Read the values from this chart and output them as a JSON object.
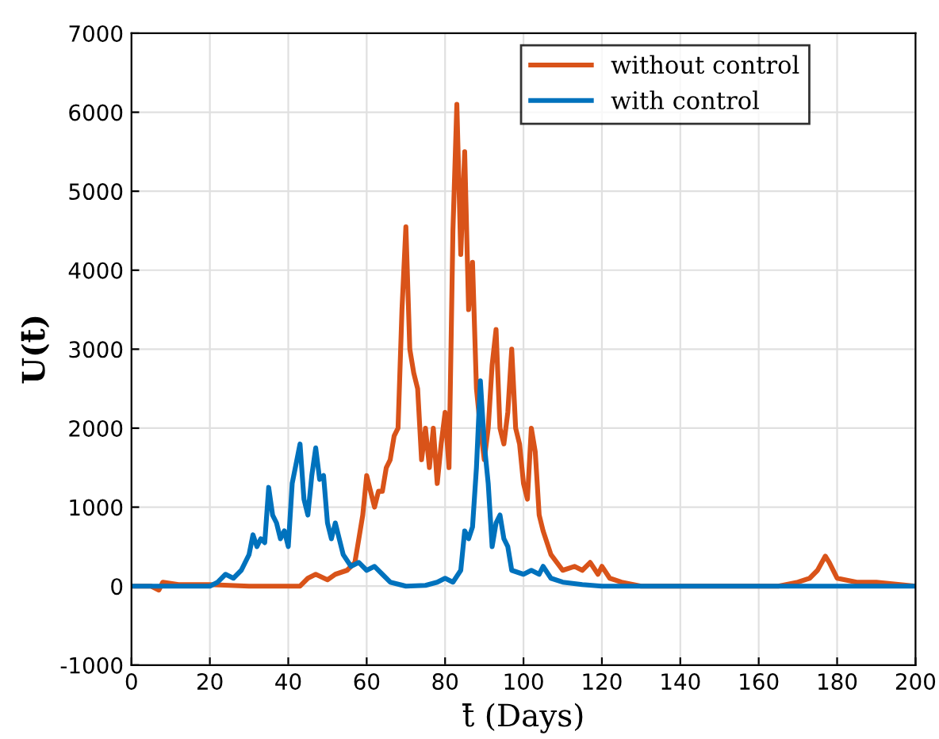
{
  "chart_data": {
    "type": "line",
    "xlabel": "t̄ (Days)",
    "ylabel": "U(t̄)",
    "xlim": [
      0,
      200
    ],
    "xticks": [
      0,
      20,
      40,
      60,
      80,
      100,
      120,
      140,
      160,
      180,
      200
    ],
    "ylim": [
      -1000,
      7000
    ],
    "yticks": [
      -1000,
      0,
      1000,
      2000,
      3000,
      4000,
      5000,
      6000,
      7000
    ],
    "grid": true,
    "legend": "top right",
    "line_style": "solid",
    "marker": "none",
    "series": [
      {
        "name": "without control",
        "color": "#d95319",
        "x": [
          0,
          5,
          7,
          8,
          12,
          20,
          25,
          30,
          43,
          45,
          47,
          50,
          52,
          55,
          57,
          58,
          59,
          60,
          61,
          62,
          63,
          64,
          65,
          66,
          67,
          68,
          69,
          70,
          71,
          72,
          73,
          74,
          75,
          76,
          77,
          78,
          79,
          80,
          81,
          82,
          83,
          84,
          85,
          86,
          87,
          88,
          89,
          90,
          91,
          92,
          93,
          94,
          95,
          96,
          97,
          98,
          99,
          100,
          101,
          102,
          103,
          104,
          105,
          107,
          110,
          113,
          115,
          117,
          119,
          120,
          122,
          125,
          130,
          165,
          170,
          173,
          175,
          177,
          178,
          180,
          185,
          190,
          200
        ],
        "values": [
          0,
          0,
          -50,
          50,
          20,
          20,
          10,
          0,
          0,
          100,
          150,
          80,
          150,
          200,
          300,
          600,
          900,
          1400,
          1200,
          1000,
          1200,
          1200,
          1500,
          1600,
          1900,
          2000,
          3500,
          4550,
          3000,
          2700,
          2500,
          1600,
          2000,
          1500,
          2000,
          1300,
          1800,
          2200,
          1500,
          4500,
          6100,
          4200,
          5500,
          3500,
          4100,
          2500,
          2000,
          1600,
          2000,
          2800,
          3250,
          2000,
          1800,
          2200,
          3000,
          2000,
          1800,
          1300,
          1100,
          2000,
          1700,
          900,
          700,
          400,
          200,
          250,
          200,
          300,
          150,
          250,
          100,
          50,
          0,
          0,
          50,
          100,
          200,
          380,
          300,
          100,
          50,
          50,
          0
        ]
      },
      {
        "name": "with control",
        "color": "#0072bd",
        "x": [
          0,
          10,
          20,
          22,
          24,
          26,
          28,
          30,
          31,
          32,
          33,
          34,
          35,
          36,
          37,
          38,
          39,
          40,
          41,
          42,
          43,
          44,
          45,
          46,
          47,
          48,
          49,
          50,
          51,
          52,
          53,
          54,
          56,
          58,
          60,
          62,
          64,
          66,
          70,
          75,
          78,
          80,
          82,
          84,
          85,
          86,
          87,
          88,
          89,
          90,
          91,
          92,
          93,
          94,
          95,
          96,
          97,
          100,
          102,
          104,
          105,
          107,
          110,
          115,
          120,
          200
        ],
        "values": [
          0,
          0,
          0,
          50,
          150,
          100,
          200,
          400,
          650,
          500,
          600,
          550,
          1250,
          900,
          800,
          600,
          700,
          500,
          1300,
          1550,
          1800,
          1100,
          900,
          1400,
          1750,
          1350,
          1400,
          800,
          600,
          800,
          600,
          400,
          250,
          300,
          200,
          250,
          150,
          50,
          0,
          10,
          50,
          100,
          50,
          200,
          700,
          600,
          750,
          1500,
          2600,
          1800,
          1300,
          500,
          800,
          900,
          600,
          500,
          200,
          150,
          200,
          150,
          250,
          100,
          50,
          20,
          0,
          0
        ]
      }
    ]
  }
}
